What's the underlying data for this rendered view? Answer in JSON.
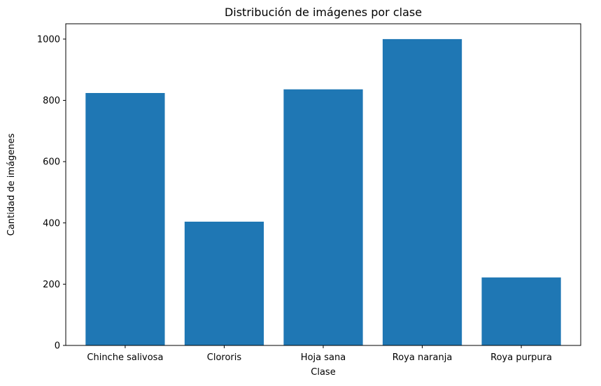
{
  "chart_data": {
    "type": "bar",
    "title": "Distribución de imágenes por clase",
    "xlabel": "Clase",
    "ylabel": "Cantidad de imágenes",
    "categories": [
      "Chinche salivosa",
      "Clororis",
      "Hoja sana",
      "Roya naranja",
      "Roya purpura"
    ],
    "values": [
      824,
      404,
      836,
      1000,
      222
    ],
    "ylim": [
      0,
      1050
    ],
    "yticks": [
      0,
      200,
      400,
      600,
      800,
      1000
    ],
    "bar_color": "#1f77b4",
    "grid": false,
    "legend": "none"
  }
}
